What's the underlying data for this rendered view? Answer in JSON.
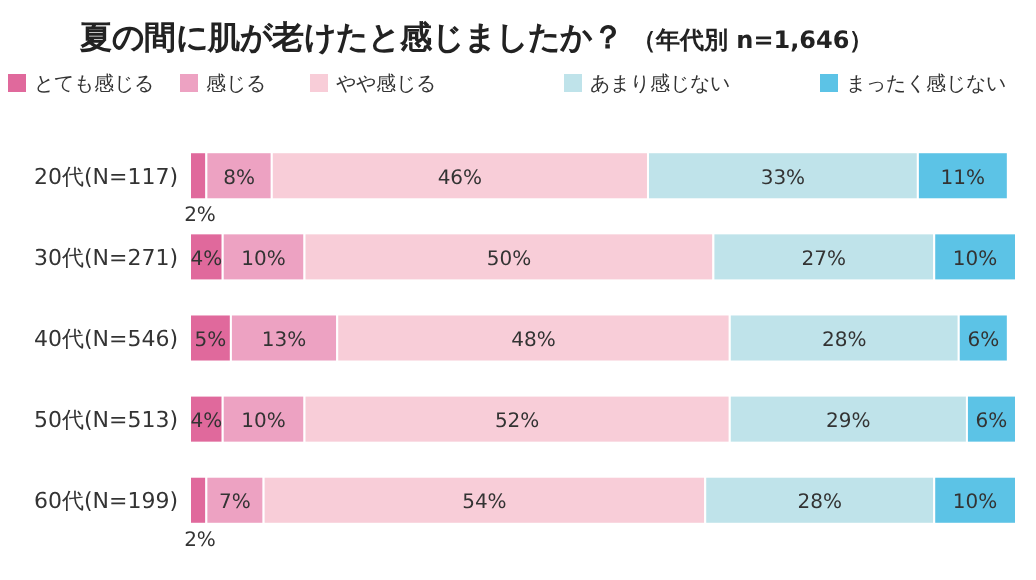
{
  "chart_data": {
    "type": "bar",
    "orientation": "horizontal",
    "stacked": true,
    "title": "夏の間に肌が老けたと感じましたか？",
    "subtitle": "（年代別 n=1,646）",
    "categories": [
      "20代(N=117)",
      "30代(N=271)",
      "40代(N=546)",
      "50代(N=513)",
      "60代(N=199)"
    ],
    "xlim": [
      0,
      101
    ],
    "tick_labels": "y",
    "legend": "top",
    "series": [
      {
        "name": "とても感じる",
        "color": "#e0699c",
        "values": [
          2,
          4,
          5,
          4,
          2
        ],
        "value_labels": [
          "2%",
          "4%",
          "5%",
          "4%",
          "2%"
        ]
      },
      {
        "name": "感じる",
        "color": "#eda2c2",
        "values": [
          8,
          10,
          13,
          10,
          7
        ],
        "value_labels": [
          "8%",
          "10%",
          "13%",
          "10%",
          "7%"
        ]
      },
      {
        "name": "やや感じる",
        "color": "#f8cdd8",
        "values": [
          46,
          50,
          48,
          52,
          54
        ],
        "value_labels": [
          "46%",
          "50%",
          "48%",
          "52%",
          "54%"
        ]
      },
      {
        "name": "あまり感じない",
        "color": "#bfe3ea",
        "values": [
          33,
          27,
          28,
          29,
          28
        ],
        "value_labels": [
          "33%",
          "27%",
          "28%",
          "29%",
          "28%"
        ]
      },
      {
        "name": "まったく感じない",
        "color": "#5cc3e6",
        "values": [
          11,
          10,
          6,
          6,
          10
        ],
        "value_labels": [
          "11%",
          "10%",
          "6%",
          "6%",
          "10%"
        ]
      }
    ]
  }
}
